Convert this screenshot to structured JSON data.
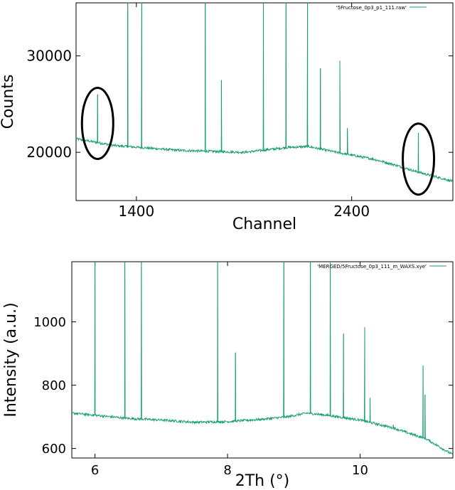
{
  "chart_data": [
    {
      "type": "line",
      "xlabel": "Channel",
      "ylabel": "Counts",
      "xlim": [
        1120,
        2870
      ],
      "ylim": [
        15000,
        35500
      ],
      "xticks": [
        1400,
        2400
      ],
      "yticks": [
        20000,
        30000
      ],
      "series": [
        {
          "name": "'5Fructose_0p3_p1_111.raw'",
          "color": "#1a9e77",
          "baseline": [
            [
              1120,
              21400
            ],
            [
              1300,
              20700
            ],
            [
              1600,
              20200
            ],
            [
              1900,
              20000
            ],
            [
              2100,
              20500
            ],
            [
              2200,
              20600
            ],
            [
              2330,
              20000
            ],
            [
              2500,
              19300
            ],
            [
              2600,
              18700
            ],
            [
              2700,
              18000
            ],
            [
              2870,
              17000
            ]
          ],
          "peaks": [
            {
              "x": 1220,
              "height": 26000
            },
            {
              "x": 1360,
              "height": 36000
            },
            {
              "x": 1425,
              "height": 36000
            },
            {
              "x": 1720,
              "height": 36000
            },
            {
              "x": 1795,
              "height": 27500
            },
            {
              "x": 1990,
              "height": 36000
            },
            {
              "x": 2095,
              "height": 36000
            },
            {
              "x": 2195,
              "height": 36000
            },
            {
              "x": 2255,
              "height": 28700
            },
            {
              "x": 2345,
              "height": 29500
            },
            {
              "x": 2380,
              "height": 22500
            },
            {
              "x": 2710,
              "height": 22000
            }
          ]
        }
      ],
      "annotations": [
        {
          "shape": "ellipse",
          "center": [
            1220,
            23000
          ]
        },
        {
          "shape": "ellipse",
          "center": [
            2710,
            19300
          ]
        }
      ]
    },
    {
      "type": "line",
      "xlabel": "2Th (°)",
      "ylabel": "Intensity (a.u.)",
      "xlim": [
        5.65,
        11.4
      ],
      "ylim": [
        570,
        1190
      ],
      "xticks": [
        6,
        8,
        10
      ],
      "yticks": [
        600,
        800,
        1000
      ],
      "series": [
        {
          "name": "'MERGED/5Fructose_0p3_111_m_WAXS.xye'",
          "color": "#1a9e77",
          "baseline": [
            [
              5.65,
              712
            ],
            [
              6.0,
              705
            ],
            [
              6.5,
              695
            ],
            [
              7.0,
              690
            ],
            [
              7.5,
              683
            ],
            [
              8.0,
              685
            ],
            [
              8.5,
              692
            ],
            [
              8.9,
              700
            ],
            [
              9.2,
              712
            ],
            [
              9.5,
              705
            ],
            [
              10.0,
              690
            ],
            [
              10.5,
              665
            ],
            [
              11.0,
              630
            ],
            [
              11.4,
              580
            ]
          ],
          "peaks": [
            {
              "x": 6.0,
              "height": 1200
            },
            {
              "x": 6.45,
              "height": 1200
            },
            {
              "x": 6.7,
              "height": 1200
            },
            {
              "x": 7.85,
              "height": 1200
            },
            {
              "x": 8.12,
              "height": 903
            },
            {
              "x": 8.85,
              "height": 1200
            },
            {
              "x": 9.25,
              "height": 1200
            },
            {
              "x": 9.55,
              "height": 1200
            },
            {
              "x": 9.75,
              "height": 963
            },
            {
              "x": 10.07,
              "height": 983
            },
            {
              "x": 10.15,
              "height": 760
            },
            {
              "x": 10.5,
              "height": 675
            },
            {
              "x": 10.95,
              "height": 862
            },
            {
              "x": 10.98,
              "height": 770
            }
          ]
        }
      ]
    }
  ]
}
